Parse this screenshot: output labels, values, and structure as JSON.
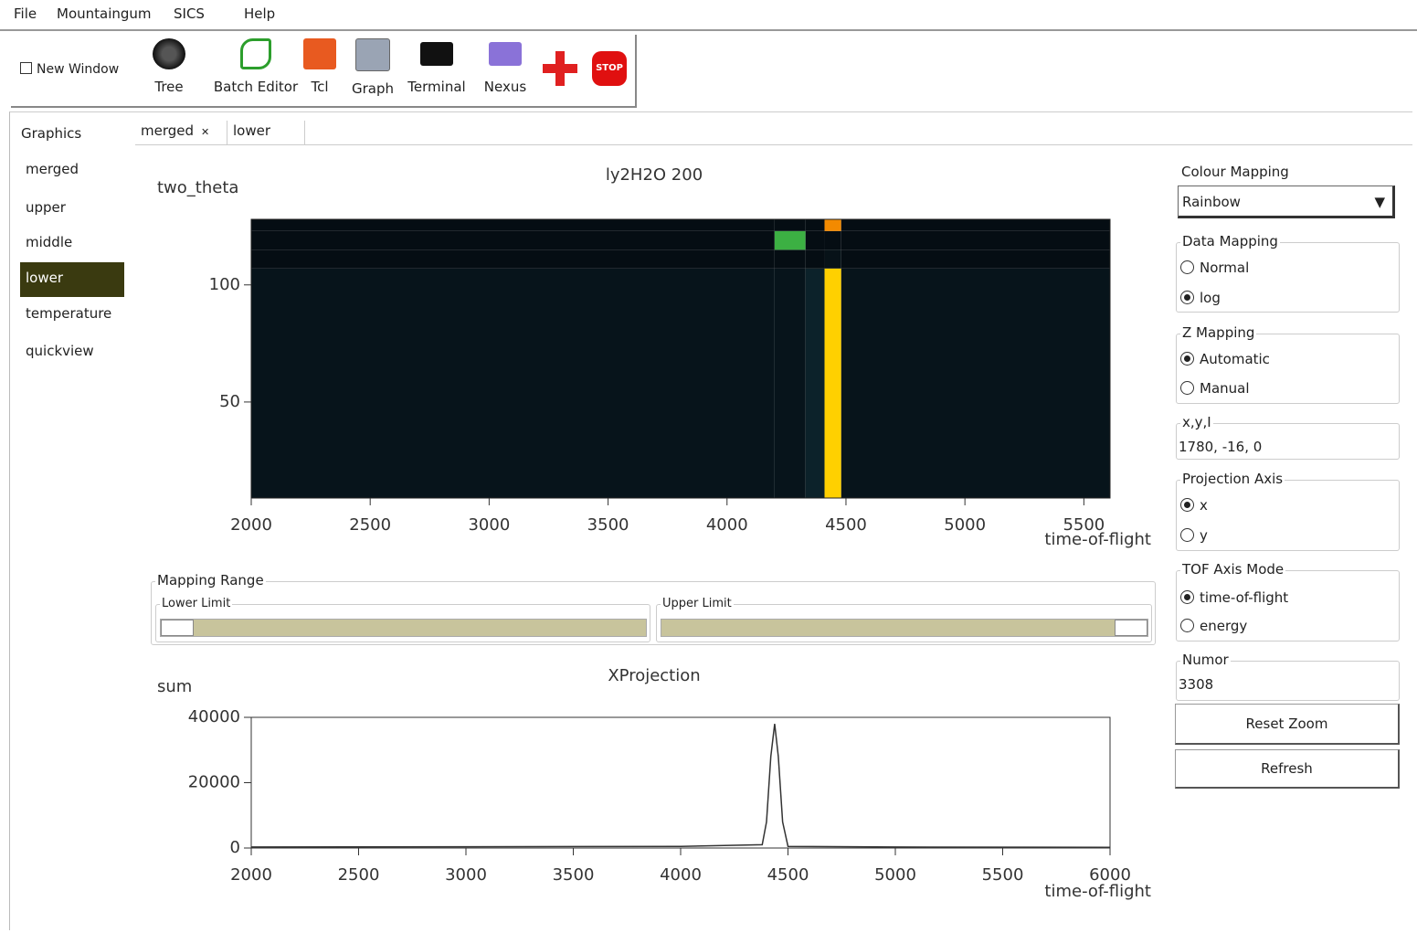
{
  "menu": [
    "File",
    "Mountaingum",
    "SICS",
    "Help"
  ],
  "toolbar": {
    "new_window": "New Window",
    "buttons": [
      "Tree",
      "Batch Editor",
      "Tcl",
      "Graph",
      "Terminal",
      "Nexus"
    ],
    "stop": "STOP"
  },
  "sidebar": {
    "title": "Graphics",
    "items": [
      "merged",
      "upper",
      "middle",
      "lower",
      "temperature",
      "quickview"
    ]
  },
  "tabs": [
    "merged",
    "lower"
  ],
  "mapping_range": {
    "title": "Mapping Range",
    "lower": "Lower Limit",
    "upper": "Upper Limit"
  },
  "panel": {
    "colour_mapping": {
      "title": "Colour Mapping",
      "value": "Rainbow"
    },
    "data_mapping": {
      "title": "Data Mapping",
      "options": [
        "Normal",
        "log"
      ]
    },
    "z_mapping": {
      "title": "Z Mapping",
      "options": [
        "Automatic",
        "Manual"
      ]
    },
    "xyi": {
      "title": "x,y,I",
      "value": "1780, -16, 0"
    },
    "projection_axis": {
      "title": "Projection Axis",
      "options": [
        "x",
        "y"
      ]
    },
    "tof_axis_mode": {
      "title": "TOF Axis Mode",
      "options": [
        "time-of-flight",
        "energy"
      ]
    },
    "numor": {
      "title": "Numor",
      "value": "3308"
    },
    "buttons": [
      "Reset Zoom",
      "Refresh"
    ]
  },
  "chart_data": [
    {
      "type": "heatmap",
      "title": "ly2H2O 200",
      "y_label": "two_theta",
      "x_label": "time-of-flight",
      "xlim": [
        2000,
        5610
      ],
      "xticks": [
        2000,
        2500,
        3000,
        3500,
        4000,
        4500,
        5000,
        5500
      ],
      "ylim": [
        9,
        128
      ],
      "yticks": [
        50,
        100
      ],
      "xbins": [
        2000,
        4200,
        4330,
        4410,
        4480,
        5610
      ],
      "ybins": [
        9,
        107,
        115,
        123,
        128
      ],
      "z": [
        [
          0.06,
          0.06,
          0.12,
          1.0,
          0.06
        ],
        [
          0.03,
          0.03,
          0.03,
          0.05,
          0.03
        ],
        [
          0.03,
          0.5,
          0.03,
          0.03,
          0.03
        ],
        [
          0.03,
          0.03,
          0.03,
          0.8,
          0.03
        ]
      ],
      "colormap": [
        "#03060c",
        "#15404a",
        "#3cb043",
        "#f07800",
        "#ffd000"
      ]
    },
    {
      "type": "line",
      "title": "XProjection",
      "y_label": "sum",
      "x_label": "time-of-flight",
      "xlim": [
        2000,
        6000
      ],
      "xticks": [
        2000,
        2500,
        3000,
        3500,
        4000,
        4500,
        5000,
        5500,
        6000
      ],
      "ylim": [
        0,
        40000
      ],
      "yticks": [
        0,
        20000,
        40000
      ],
      "x": [
        2000,
        3000,
        4000,
        4380,
        4400,
        4420,
        4438,
        4455,
        4475,
        4500,
        5000,
        6000
      ],
      "y": [
        300,
        400,
        500,
        1000,
        8000,
        28000,
        38000,
        28000,
        8000,
        500,
        300,
        200
      ],
      "color": "#333333"
    }
  ]
}
